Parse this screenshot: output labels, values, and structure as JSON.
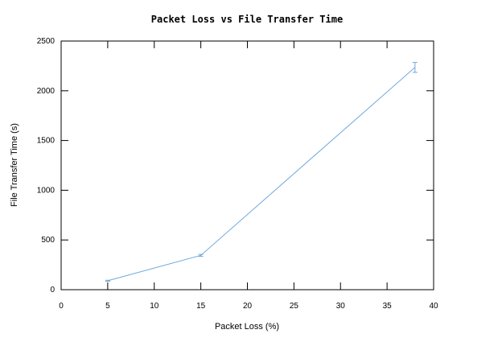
{
  "chart_data": {
    "type": "line",
    "title": "Packet Loss vs File Transfer Time",
    "xlabel": "Packet Loss (%)",
    "ylabel": "File Transfer Time (s)",
    "xlim": [
      0,
      40
    ],
    "ylim": [
      0,
      2500
    ],
    "xticks": [
      0,
      5,
      10,
      15,
      20,
      25,
      30,
      35,
      40
    ],
    "yticks": [
      0,
      500,
      1000,
      1500,
      2000,
      2500
    ],
    "grid": false,
    "error_bars": true,
    "series": [
      {
        "x": [
          5,
          15,
          38
        ],
        "y": [
          90,
          345,
          2235
        ],
        "error": [
          5,
          10,
          50
        ],
        "color": "#6fa8dc"
      }
    ]
  }
}
